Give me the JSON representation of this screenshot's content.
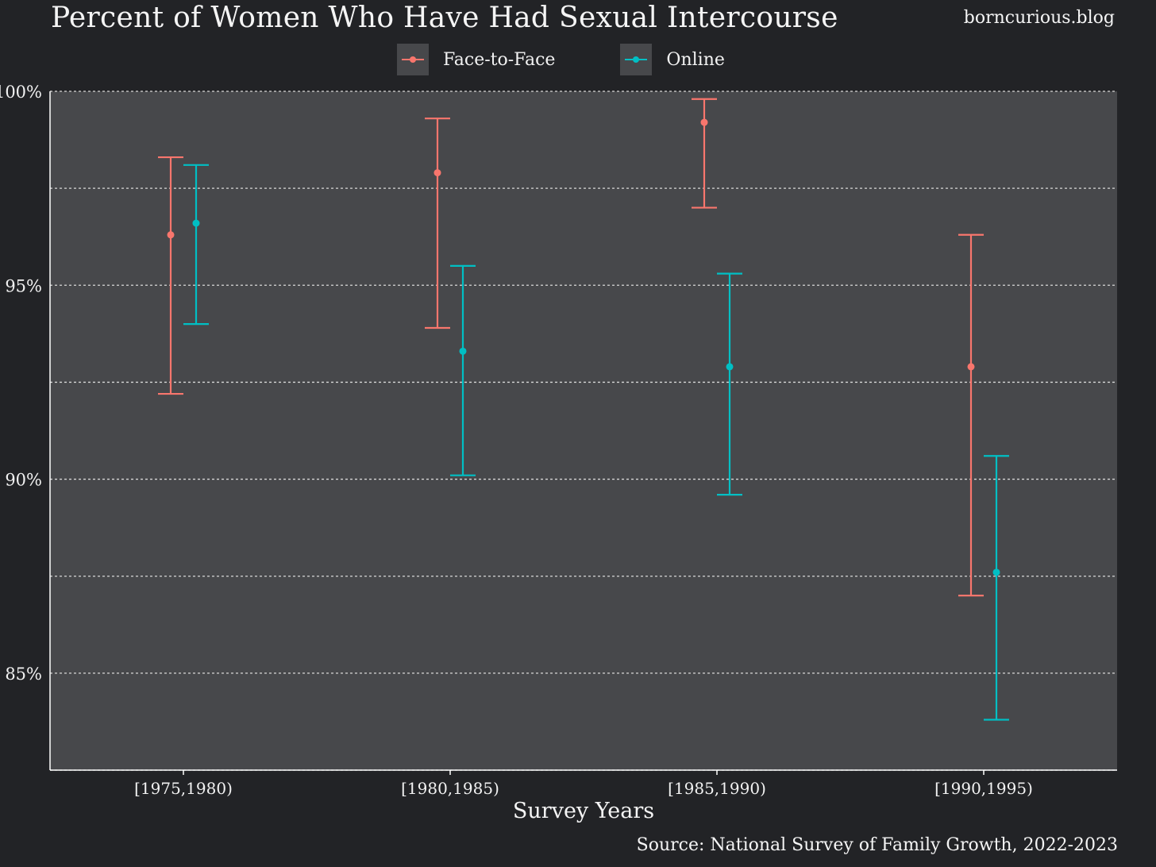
{
  "header": {
    "title": "Percent of Women Who Have Had Sexual Intercourse",
    "site": "borncurious.blog"
  },
  "footer": {
    "source": "Source: National Survey of Family Growth, 2022-2023"
  },
  "colors": {
    "background": "#222326",
    "panel": "#47484b",
    "face_to_face": "#f8766d",
    "online": "#00bfc4",
    "grid": "#d8d8d8",
    "text": "#f2f2f2"
  },
  "chart_data": {
    "type": "errorbar",
    "title": "Percent of Women Who Have Had Sexual Intercourse",
    "xlabel": "Survey Years",
    "ylabel": "",
    "categories": [
      "[1975,1980)",
      "[1980,1985)",
      "[1985,1990)",
      "[1990,1995)"
    ],
    "ylim": [
      82.5,
      100
    ],
    "yticks": [
      85,
      90,
      95,
      100
    ],
    "ytick_labels": [
      "85%",
      "90%",
      "95%",
      "100%"
    ],
    "grid": true,
    "legend_position": "top",
    "series": [
      {
        "name": "Face-to-Face",
        "color": "#f8766d",
        "values": [
          96.3,
          97.9,
          99.2,
          92.9
        ],
        "lower": [
          92.2,
          93.9,
          97.0,
          87.0
        ],
        "upper": [
          98.3,
          99.3,
          99.8,
          96.3
        ]
      },
      {
        "name": "Online",
        "color": "#00bfc4",
        "values": [
          96.6,
          93.3,
          92.9,
          87.6
        ],
        "lower": [
          94.0,
          90.1,
          89.6,
          83.8
        ],
        "upper": [
          98.1,
          95.5,
          95.3,
          90.6
        ]
      }
    ]
  }
}
